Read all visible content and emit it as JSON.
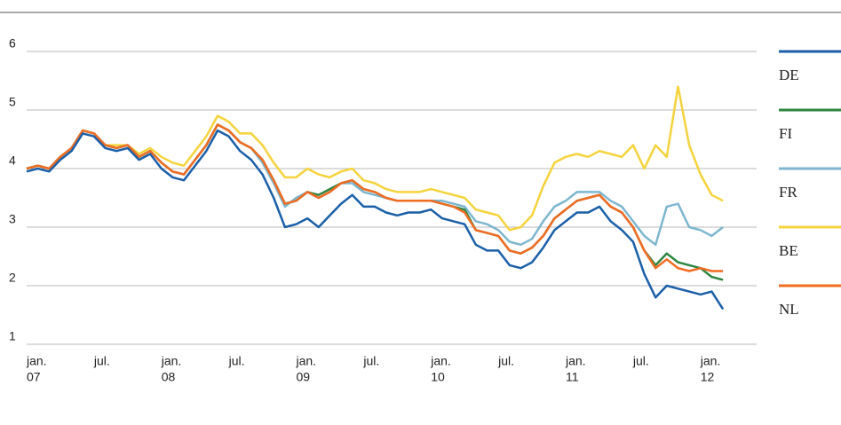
{
  "chart_data": {
    "type": "line",
    "x": [
      "2007-01",
      "2007-02",
      "2007-03",
      "2007-04",
      "2007-05",
      "2007-06",
      "2007-07",
      "2007-08",
      "2007-09",
      "2007-10",
      "2007-11",
      "2007-12",
      "2008-01",
      "2008-02",
      "2008-03",
      "2008-04",
      "2008-05",
      "2008-06",
      "2008-07",
      "2008-08",
      "2008-09",
      "2008-10",
      "2008-11",
      "2008-12",
      "2009-01",
      "2009-02",
      "2009-03",
      "2009-04",
      "2009-05",
      "2009-06",
      "2009-07",
      "2009-08",
      "2009-09",
      "2009-10",
      "2009-11",
      "2009-12",
      "2010-01",
      "2010-02",
      "2010-03",
      "2010-04",
      "2010-05",
      "2010-06",
      "2010-07",
      "2010-08",
      "2010-09",
      "2010-10",
      "2010-11",
      "2010-12",
      "2011-01",
      "2011-02",
      "2011-03",
      "2011-04",
      "2011-05",
      "2011-06",
      "2011-07",
      "2011-08",
      "2011-09",
      "2011-10",
      "2011-11",
      "2011-12",
      "2012-01",
      "2012-02",
      "2012-03"
    ],
    "series": [
      {
        "name": "DE",
        "color": "#1a5fa8",
        "values": [
          3.95,
          4.0,
          3.95,
          4.15,
          4.3,
          4.6,
          4.55,
          4.35,
          4.3,
          4.35,
          4.15,
          4.25,
          4.0,
          3.85,
          3.8,
          4.05,
          4.3,
          4.65,
          4.55,
          4.3,
          4.15,
          3.9,
          3.5,
          3.0,
          3.05,
          3.15,
          3.0,
          3.2,
          3.4,
          3.55,
          3.35,
          3.35,
          3.25,
          3.2,
          3.25,
          3.25,
          3.3,
          3.15,
          3.1,
          3.05,
          2.7,
          2.6,
          2.6,
          2.35,
          2.3,
          2.4,
          2.65,
          2.95,
          3.1,
          3.25,
          3.25,
          3.35,
          3.1,
          2.95,
          2.75,
          2.2,
          1.8,
          2.0,
          1.95,
          1.9,
          1.85,
          1.9,
          1.6
        ]
      },
      {
        "name": "FI",
        "color": "#2e8540",
        "values": [
          4.0,
          4.05,
          4.0,
          4.2,
          4.35,
          4.65,
          4.6,
          4.4,
          4.35,
          4.4,
          4.2,
          4.3,
          4.1,
          3.95,
          3.9,
          4.15,
          4.4,
          4.75,
          4.65,
          4.45,
          4.35,
          4.15,
          3.8,
          3.4,
          3.45,
          3.6,
          3.55,
          3.65,
          3.75,
          3.8,
          3.65,
          3.6,
          3.5,
          3.45,
          3.45,
          3.45,
          3.45,
          3.4,
          3.35,
          3.3,
          2.95,
          2.9,
          2.85,
          2.6,
          2.55,
          2.65,
          2.85,
          3.15,
          3.3,
          3.45,
          3.5,
          3.55,
          3.35,
          3.25,
          3.0,
          2.6,
          2.35,
          2.55,
          2.4,
          2.35,
          2.3,
          2.15,
          2.1
        ]
      },
      {
        "name": "FR",
        "color": "#7db6cf",
        "values": [
          4.0,
          4.05,
          4.0,
          4.2,
          4.35,
          4.65,
          4.6,
          4.4,
          4.35,
          4.4,
          4.2,
          4.3,
          4.1,
          3.95,
          3.9,
          4.15,
          4.4,
          4.75,
          4.65,
          4.45,
          4.35,
          4.1,
          3.75,
          3.35,
          3.5,
          3.6,
          3.5,
          3.6,
          3.75,
          3.75,
          3.6,
          3.55,
          3.5,
          3.45,
          3.45,
          3.45,
          3.45,
          3.45,
          3.4,
          3.35,
          3.1,
          3.05,
          2.95,
          2.75,
          2.7,
          2.8,
          3.1,
          3.35,
          3.45,
          3.6,
          3.6,
          3.6,
          3.45,
          3.35,
          3.1,
          2.85,
          2.7,
          3.35,
          3.4,
          3.0,
          2.95,
          2.85,
          3.0
        ]
      },
      {
        "name": "BE",
        "color": "#f5d33c",
        "values": [
          4.0,
          4.05,
          4.0,
          4.2,
          4.35,
          4.65,
          4.6,
          4.4,
          4.4,
          4.4,
          4.25,
          4.35,
          4.2,
          4.1,
          4.05,
          4.3,
          4.55,
          4.9,
          4.8,
          4.6,
          4.6,
          4.4,
          4.1,
          3.85,
          3.85,
          4.0,
          3.9,
          3.85,
          3.95,
          4.0,
          3.8,
          3.75,
          3.65,
          3.6,
          3.6,
          3.6,
          3.65,
          3.6,
          3.55,
          3.5,
          3.3,
          3.25,
          3.2,
          2.95,
          3.0,
          3.2,
          3.7,
          4.1,
          4.2,
          4.25,
          4.2,
          4.3,
          4.25,
          4.2,
          4.4,
          4.0,
          4.4,
          4.2,
          5.4,
          4.4,
          3.9,
          3.55,
          3.45
        ]
      },
      {
        "name": "NL",
        "color": "#f26b21",
        "values": [
          4.0,
          4.05,
          4.0,
          4.2,
          4.35,
          4.65,
          4.6,
          4.4,
          4.35,
          4.4,
          4.2,
          4.3,
          4.1,
          3.95,
          3.9,
          4.15,
          4.4,
          4.75,
          4.65,
          4.45,
          4.35,
          4.15,
          3.8,
          3.4,
          3.45,
          3.6,
          3.5,
          3.6,
          3.75,
          3.8,
          3.65,
          3.6,
          3.5,
          3.45,
          3.45,
          3.45,
          3.45,
          3.4,
          3.35,
          3.25,
          2.95,
          2.9,
          2.85,
          2.6,
          2.55,
          2.65,
          2.85,
          3.15,
          3.3,
          3.45,
          3.5,
          3.55,
          3.35,
          3.25,
          3.0,
          2.6,
          2.3,
          2.45,
          2.3,
          2.25,
          2.3,
          2.25,
          2.25
        ]
      }
    ],
    "xlim": [
      "2007-01",
      "2012-06"
    ],
    "xticks": [
      {
        "value": "2007-01",
        "label": [
          "jan.",
          "07"
        ]
      },
      {
        "value": "2007-07",
        "label": [
          "jul."
        ]
      },
      {
        "value": "2008-01",
        "label": [
          "jan.",
          "08"
        ]
      },
      {
        "value": "2008-07",
        "label": [
          "jul."
        ]
      },
      {
        "value": "2009-01",
        "label": [
          "jan.",
          "09"
        ]
      },
      {
        "value": "2009-07",
        "label": [
          "jul."
        ]
      },
      {
        "value": "2010-01",
        "label": [
          "jan.",
          "10"
        ]
      },
      {
        "value": "2010-07",
        "label": [
          "jul."
        ]
      },
      {
        "value": "2011-01",
        "label": [
          "jan.",
          "11"
        ]
      },
      {
        "value": "2011-07",
        "label": [
          "jul."
        ]
      },
      {
        "value": "2012-01",
        "label": [
          "jan.",
          "12"
        ]
      }
    ],
    "ylim": [
      1,
      6
    ],
    "yticks": [
      1,
      2,
      3,
      4,
      5,
      6
    ],
    "grid": true,
    "legend": "right"
  }
}
